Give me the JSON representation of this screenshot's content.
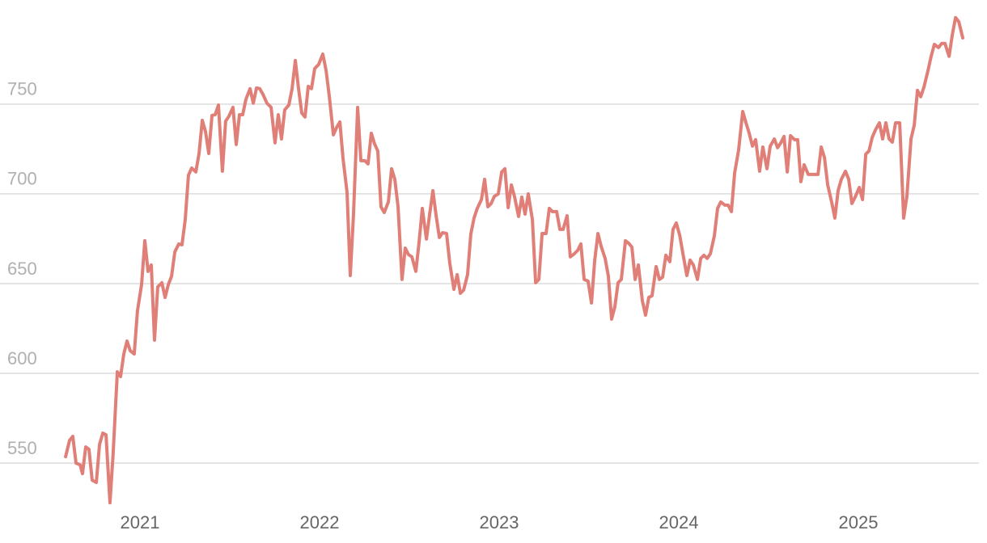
{
  "chart_data": {
    "type": "line",
    "x": [
      2020.586,
      2020.608,
      2020.626,
      2020.644,
      2020.667,
      2020.68,
      2020.698,
      2020.716,
      2020.734,
      2020.757,
      2020.775,
      2020.793,
      2020.811,
      2020.833,
      2020.851,
      2020.874,
      2020.892,
      2020.91,
      2020.928,
      2020.946,
      2020.968,
      2020.986,
      2021.009,
      2021.027,
      2021.045,
      2021.063,
      2021.081,
      2021.099,
      2021.122,
      2021.14,
      2021.158,
      2021.176,
      2021.194,
      2021.216,
      2021.234,
      2021.252,
      2021.27,
      2021.288,
      2021.311,
      2021.329,
      2021.347,
      2021.365,
      2021.383,
      2021.401,
      2021.419,
      2021.437,
      2021.459,
      2021.477,
      2021.495,
      2021.518,
      2021.536,
      2021.554,
      2021.572,
      2021.59,
      2021.613,
      2021.631,
      2021.649,
      2021.667,
      2021.685,
      2021.707,
      2021.73,
      2021.752,
      2021.77,
      2021.788,
      2021.806,
      2021.829,
      2021.847,
      2021.865,
      2021.883,
      2021.901,
      2021.919,
      2021.937,
      2021.955,
      2021.973,
      2021.995,
      2022.018,
      2022.036,
      2022.054,
      2022.077,
      2022.095,
      2022.113,
      2022.131,
      2022.153,
      2022.171,
      2022.189,
      2022.212,
      2022.23,
      2022.252,
      2022.27,
      2022.288,
      2022.306,
      2022.324,
      2022.342,
      2022.36,
      2022.383,
      2022.401,
      2022.419,
      2022.437,
      2022.459,
      2022.477,
      2022.495,
      2022.514,
      2022.536,
      2022.554,
      2022.572,
      2022.595,
      2022.613,
      2022.631,
      2022.649,
      2022.667,
      2022.685,
      2022.707,
      2022.725,
      2022.748,
      2022.766,
      2022.784,
      2022.802,
      2022.824,
      2022.842,
      2022.86,
      2022.878,
      2022.901,
      2022.919,
      2022.937,
      2022.955,
      2022.973,
      2022.995,
      2023.014,
      2023.032,
      2023.05,
      2023.068,
      2023.086,
      2023.108,
      2023.126,
      2023.144,
      2023.162,
      2023.185,
      2023.203,
      2023.221,
      2023.239,
      2023.261,
      2023.279,
      2023.297,
      2023.32,
      2023.338,
      2023.356,
      2023.378,
      2023.396,
      2023.419,
      2023.437,
      2023.455,
      2023.473,
      2023.495,
      2023.514,
      2023.532,
      2023.55,
      2023.568,
      2023.59,
      2023.608,
      2023.626,
      2023.644,
      2023.662,
      2023.68,
      2023.703,
      2023.721,
      2023.739,
      2023.757,
      2023.775,
      2023.797,
      2023.815,
      2023.833,
      2023.851,
      2023.874,
      2023.892,
      2023.91,
      2023.928,
      2023.95,
      2023.968,
      2023.986,
      2024.005,
      2024.023,
      2024.045,
      2024.063,
      2024.081,
      2024.104,
      2024.122,
      2024.14,
      2024.158,
      2024.176,
      2024.198,
      2024.216,
      2024.234,
      2024.257,
      2024.275,
      2024.293,
      2024.311,
      2024.333,
      2024.356,
      2024.374,
      2024.392,
      2024.41,
      2024.428,
      2024.45,
      2024.468,
      2024.491,
      2024.509,
      2024.532,
      2024.55,
      2024.568,
      2024.586,
      2024.604,
      2024.622,
      2024.644,
      2024.662,
      2024.68,
      2024.698,
      2024.721,
      2024.739,
      2024.757,
      2024.775,
      2024.793,
      2024.811,
      2024.829,
      2024.851,
      2024.869,
      2024.887,
      2024.905,
      2024.928,
      2024.946,
      2024.964,
      2024.982,
      2025.005,
      2025.023,
      2025.041,
      2025.059,
      2025.077,
      2025.095,
      2025.117,
      2025.135,
      2025.153,
      2025.171,
      2025.189,
      2025.207,
      2025.23,
      2025.252,
      2025.27,
      2025.293,
      2025.311,
      2025.329,
      2025.347,
      2025.365,
      2025.387,
      2025.405,
      2025.423,
      2025.446,
      2025.464,
      2025.482,
      2025.505,
      2025.523,
      2025.541,
      2025.559,
      2025.581
    ],
    "series": [
      {
        "color": "#e07f78",
        "values": [
          553.6,
          562.6,
          564.9,
          550,
          549,
          544.1,
          559,
          557.7,
          540.5,
          539.2,
          560.4,
          566.7,
          565.8,
          527.9,
          555.9,
          600.9,
          598.2,
          610.8,
          618,
          612.6,
          610.8,
          634.7,
          649.5,
          673.9,
          656.8,
          660.4,
          618.5,
          648.2,
          650.5,
          642.3,
          649.5,
          654.1,
          667.6,
          672.1,
          671.6,
          685.6,
          710.4,
          714.4,
          712.2,
          722.5,
          741,
          734.7,
          722.5,
          743.7,
          744.1,
          749.5,
          712.6,
          740.5,
          743.2,
          748.2,
          727.5,
          744.1,
          744.1,
          752.7,
          758.6,
          750.5,
          759,
          758.6,
          755.4,
          750.5,
          748.2,
          728.4,
          744.1,
          730.6,
          746.8,
          749.5,
          758.6,
          774.3,
          758.6,
          745,
          742.8,
          759.9,
          758.6,
          769.8,
          772.1,
          777.9,
          768.9,
          754.5,
          732.9,
          737,
          740.1,
          719.4,
          700.9,
          654.5,
          688.7,
          748.2,
          718.5,
          718.5,
          716.7,
          733.8,
          727.9,
          723.9,
          692.8,
          689.6,
          695.5,
          714,
          708.1,
          692.8,
          652.3,
          669.8,
          666.2,
          664.9,
          656.8,
          673,
          691.9,
          674.8,
          688.7,
          701.8,
          687.8,
          675.7,
          678.4,
          677.9,
          661.3,
          646.8,
          655,
          644.6,
          646.4,
          655,
          677.5,
          686.5,
          691.9,
          696.8,
          708.1,
          692.8,
          694.6,
          698.6,
          700,
          712.2,
          714,
          692.3,
          705,
          698.2,
          687.4,
          698.2,
          688.7,
          700,
          685.6,
          650.5,
          652.3,
          677.9,
          677.9,
          691.9,
          690.1,
          690.1,
          680.2,
          680.2,
          687.8,
          664.9,
          666.7,
          668.5,
          672.1,
          652.3,
          651.4,
          639.2,
          663.1,
          677.9,
          670.7,
          664,
          654.1,
          630.2,
          637.1,
          650.5,
          652.3,
          673.9,
          672.5,
          670.3,
          652.3,
          660.4,
          640.5,
          632.4,
          642.3,
          643.2,
          659.5,
          652.3,
          653.6,
          665.8,
          662.2,
          680.2,
          683.8,
          677,
          666.7,
          654.5,
          663.1,
          660.4,
          652.3,
          664,
          665.8,
          664,
          666.7,
          676.6,
          691.9,
          695.5,
          693.7,
          693.7,
          690.1,
          711.7,
          724.3,
          745.9,
          739.6,
          733.8,
          726.6,
          730.2,
          712.6,
          726.1,
          714,
          726.6,
          730.6,
          725.7,
          728.4,
          732,
          712.2,
          732.4,
          730.2,
          730.2,
          706.8,
          716.2,
          710.8,
          710.8,
          710.8,
          710.8,
          726.1,
          720.3,
          705,
          695.5,
          686.5,
          701.8,
          708.1,
          712.6,
          708.1,
          694.6,
          698.2,
          703.6,
          696.8,
          722.1,
          723.9,
          731.5,
          735.6,
          739.6,
          730.6,
          739.6,
          730.6,
          728.8,
          739.6,
          739.6,
          686.5,
          698.6,
          730.6,
          738.3,
          757.7,
          754.1,
          759.5,
          768.5,
          776.6,
          783.3,
          781.5,
          783.8,
          783.8,
          776.6,
          788.7,
          798.2,
          795.9,
          786.9
        ]
      }
    ],
    "xlim": [
      2020.491,
      2025.671
    ],
    "xticks": [
      2021,
      2022,
      2023,
      2024,
      2025
    ],
    "ylim": [
      528,
      808
    ],
    "yticks": [
      550,
      600,
      650,
      700,
      750
    ],
    "grid": true
  }
}
